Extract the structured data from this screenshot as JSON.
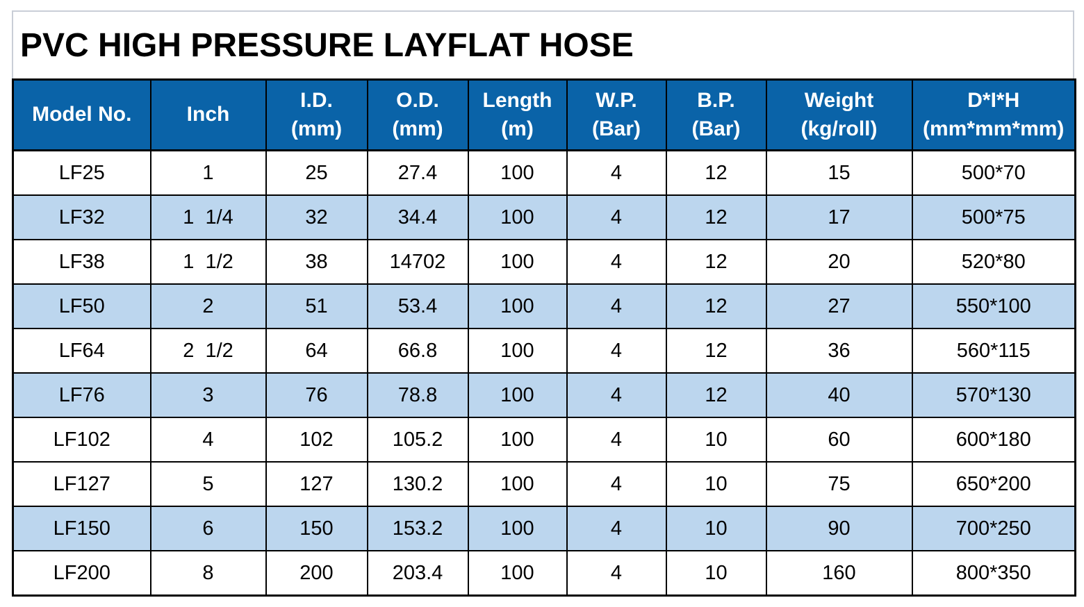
{
  "title": "PVC HIGH PRESSURE LAYFLAT HOSE",
  "colors": {
    "header_bg": "#0a63a8",
    "header_text": "#ffffff",
    "shaded_row_bg": "#bcd6ee",
    "grid_border": "#000000",
    "title_box_border": "#c9ced7"
  },
  "table": {
    "columns": [
      {
        "key": "model-no",
        "line1": "Model No.",
        "line2": ""
      },
      {
        "key": "inch",
        "line1": "Inch",
        "line2": ""
      },
      {
        "key": "id-mm",
        "line1": "I.D.",
        "line2": "(mm)"
      },
      {
        "key": "od-mm",
        "line1": "O.D.",
        "line2": "(mm)"
      },
      {
        "key": "length-m",
        "line1": "Length",
        "line2": "(m)"
      },
      {
        "key": "wp-bar",
        "line1": "W.P.",
        "line2": "(Bar)"
      },
      {
        "key": "bp-bar",
        "line1": "B.P.",
        "line2": "(Bar)"
      },
      {
        "key": "weight",
        "line1": "Weight",
        "line2": "(kg/roll)"
      },
      {
        "key": "dih",
        "line1": "D*I*H",
        "line2": "(mm*mm*mm)"
      }
    ],
    "rows": [
      {
        "shaded": false,
        "cells": [
          "LF25",
          "1",
          "25",
          "27.4",
          "100",
          "4",
          "12",
          "15",
          "500*70"
        ]
      },
      {
        "shaded": true,
        "cells": [
          "LF32",
          "1  1/4",
          "32",
          "34.4",
          "100",
          "4",
          "12",
          "17",
          "500*75"
        ]
      },
      {
        "shaded": false,
        "cells": [
          "LF38",
          "1  1/2",
          "38",
          "14702",
          "100",
          "4",
          "12",
          "20",
          "520*80"
        ]
      },
      {
        "shaded": true,
        "cells": [
          "LF50",
          "2",
          "51",
          "53.4",
          "100",
          "4",
          "12",
          "27",
          "550*100"
        ]
      },
      {
        "shaded": false,
        "cells": [
          "LF64",
          "2  1/2",
          "64",
          "66.8",
          "100",
          "4",
          "12",
          "36",
          "560*115"
        ]
      },
      {
        "shaded": true,
        "cells": [
          "LF76",
          "3",
          "76",
          "78.8",
          "100",
          "4",
          "12",
          "40",
          "570*130"
        ]
      },
      {
        "shaded": false,
        "cells": [
          "LF102",
          "4",
          "102",
          "105.2",
          "100",
          "4",
          "10",
          "60",
          "600*180"
        ]
      },
      {
        "shaded": false,
        "cells": [
          "LF127",
          "5",
          "127",
          "130.2",
          "100",
          "4",
          "10",
          "75",
          "650*200"
        ]
      },
      {
        "shaded": true,
        "cells": [
          "LF150",
          "6",
          "150",
          "153.2",
          "100",
          "4",
          "10",
          "90",
          "700*250"
        ]
      },
      {
        "shaded": false,
        "cells": [
          "LF200",
          "8",
          "200",
          "203.4",
          "100",
          "4",
          "10",
          "160",
          "800*350"
        ]
      }
    ]
  }
}
